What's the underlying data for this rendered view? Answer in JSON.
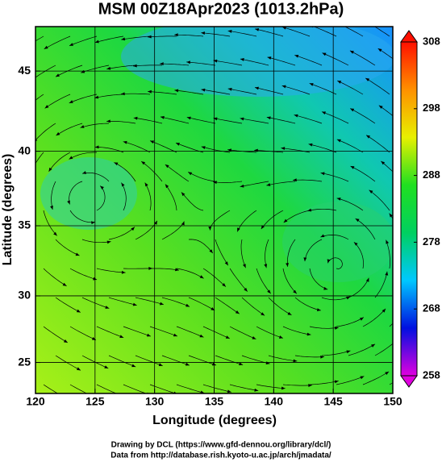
{
  "chart_data": {
    "type": "map",
    "title": "MSM 00Z18Apr2023 (1013.2hPa)",
    "xlabel": "Longitude (degrees)",
    "ylabel": "Latitude  (degrees)",
    "projection": "mercator",
    "xlim": [
      120,
      150
    ],
    "xticks": [
      120,
      125,
      130,
      135,
      140,
      145,
      150
    ],
    "ylim": [
      22.6,
      47.6
    ],
    "yticks": [
      25,
      30,
      35,
      40,
      45
    ],
    "grid": true,
    "colorbar": {
      "lim": [
        258,
        308
      ],
      "ticks": [
        258,
        268,
        278,
        288,
        298,
        308
      ],
      "colors": [
        "#e000e0",
        "#0010e0",
        "#00c8ff",
        "#00d060",
        "#20e020",
        "#e8f000",
        "#ff9000",
        "#ff1000"
      ]
    },
    "annotations": [
      "Drawing by DCL (https://www.gfd-dennou.org/library/dcl/)",
      "Data from http://database.rish.kyoto-u.ac.jp/arch/jmadata/"
    ]
  }
}
